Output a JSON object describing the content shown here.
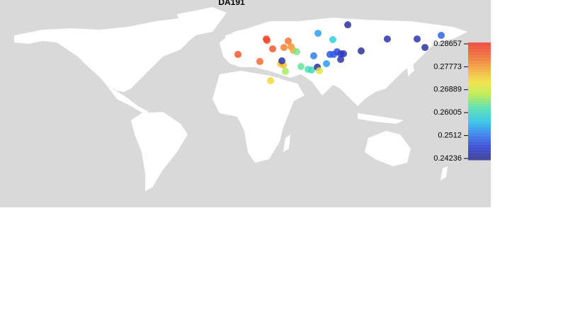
{
  "chart_data": {
    "type": "map",
    "title": "DA191",
    "x": [
      26.4,
      26.9,
      31.3,
      4.4,
      21.4,
      43.4,
      40.1,
      45.6,
      47.3,
      37.4,
      39.6,
      29.7,
      41.2,
      50.0,
      38.5,
      53.3,
      58.8,
      61.5,
      66.0,
      67.6,
      63.2,
      66.5,
      78.0,
      89.6,
      73.1,
      78.6,
      81.3,
      84.1,
      86.3,
      84.1,
      100.0,
      120.3,
      143.4,
      149.5,
      162.1,
      75.8
    ],
    "y": [
      60.4,
      59.3,
      52.7,
      48.4,
      42.9,
      58.8,
      53.8,
      54.4,
      51.6,
      41.2,
      40.1,
      28.0,
      35.2,
      50.5,
      43.4,
      39.0,
      36.8,
      36.3,
      38.5,
      35.7,
      47.3,
      64.8,
      59.9,
      71.4,
      41.2,
      48.4,
      50.5,
      48.9,
      48.9,
      44.5,
      51.1,
      60.4,
      60.4,
      53.8,
      63.2,
      48.4
    ],
    "values": [
      0.286,
      0.285,
      0.284,
      0.284,
      0.282,
      0.281,
      0.28,
      0.279,
      0.277,
      0.274,
      0.275,
      0.273,
      0.266,
      0.264,
      0.244,
      0.263,
      0.262,
      0.26,
      0.243,
      0.27,
      0.252,
      0.254,
      0.258,
      0.243,
      0.254,
      0.249,
      0.248,
      0.247,
      0.245,
      0.244,
      0.243,
      0.244,
      0.244,
      0.243,
      0.25,
      0.249
    ],
    "colorbar": {
      "lim": [
        0.24181,
        0.28712
      ],
      "ticks": [
        0.28657,
        0.27773,
        0.26889,
        0.26005,
        0.2512,
        0.24236
      ]
    },
    "colormap": [
      "#2a2f8a",
      "#2e3fd6",
      "#2f7ef0",
      "#27c8e8",
      "#4fe0b0",
      "#b8f04a",
      "#f5e43a",
      "#f7a83a",
      "#f26a30",
      "#f03a2e"
    ]
  }
}
